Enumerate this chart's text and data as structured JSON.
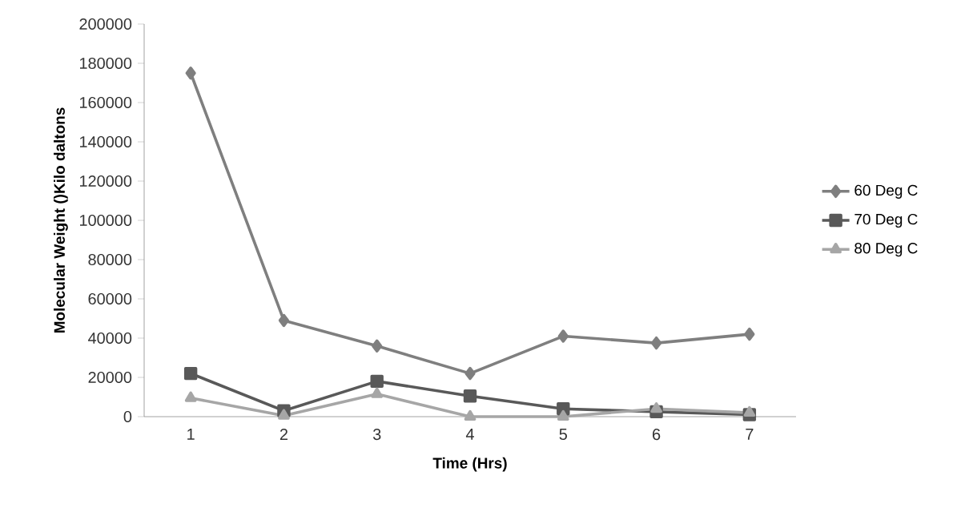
{
  "chart_data": {
    "type": "line",
    "xlabel": "Time (Hrs)",
    "ylabel": "Molecular Weight ()Kilo daltons",
    "categories": [
      "1",
      "2",
      "3",
      "4",
      "5",
      "6",
      "7"
    ],
    "series": [
      {
        "name": "60 Deg C",
        "color": "#7f7f7f",
        "marker": "diamond",
        "values": [
          175000,
          49000,
          36000,
          22000,
          41000,
          37500,
          42000
        ]
      },
      {
        "name": "70 Deg C",
        "color": "#595959",
        "marker": "square",
        "values": [
          22000,
          3000,
          18000,
          10500,
          4000,
          2500,
          1000
        ]
      },
      {
        "name": "80 Deg C",
        "color": "#a6a6a6",
        "marker": "triangle",
        "values": [
          9500,
          500,
          11500,
          0,
          0,
          4000,
          2000
        ]
      }
    ],
    "ylim": [
      0,
      200000
    ],
    "yticks": [
      0,
      20000,
      40000,
      60000,
      80000,
      100000,
      120000,
      140000,
      160000,
      180000,
      200000
    ],
    "legend": "right",
    "grid": false,
    "line_style": "solid"
  }
}
